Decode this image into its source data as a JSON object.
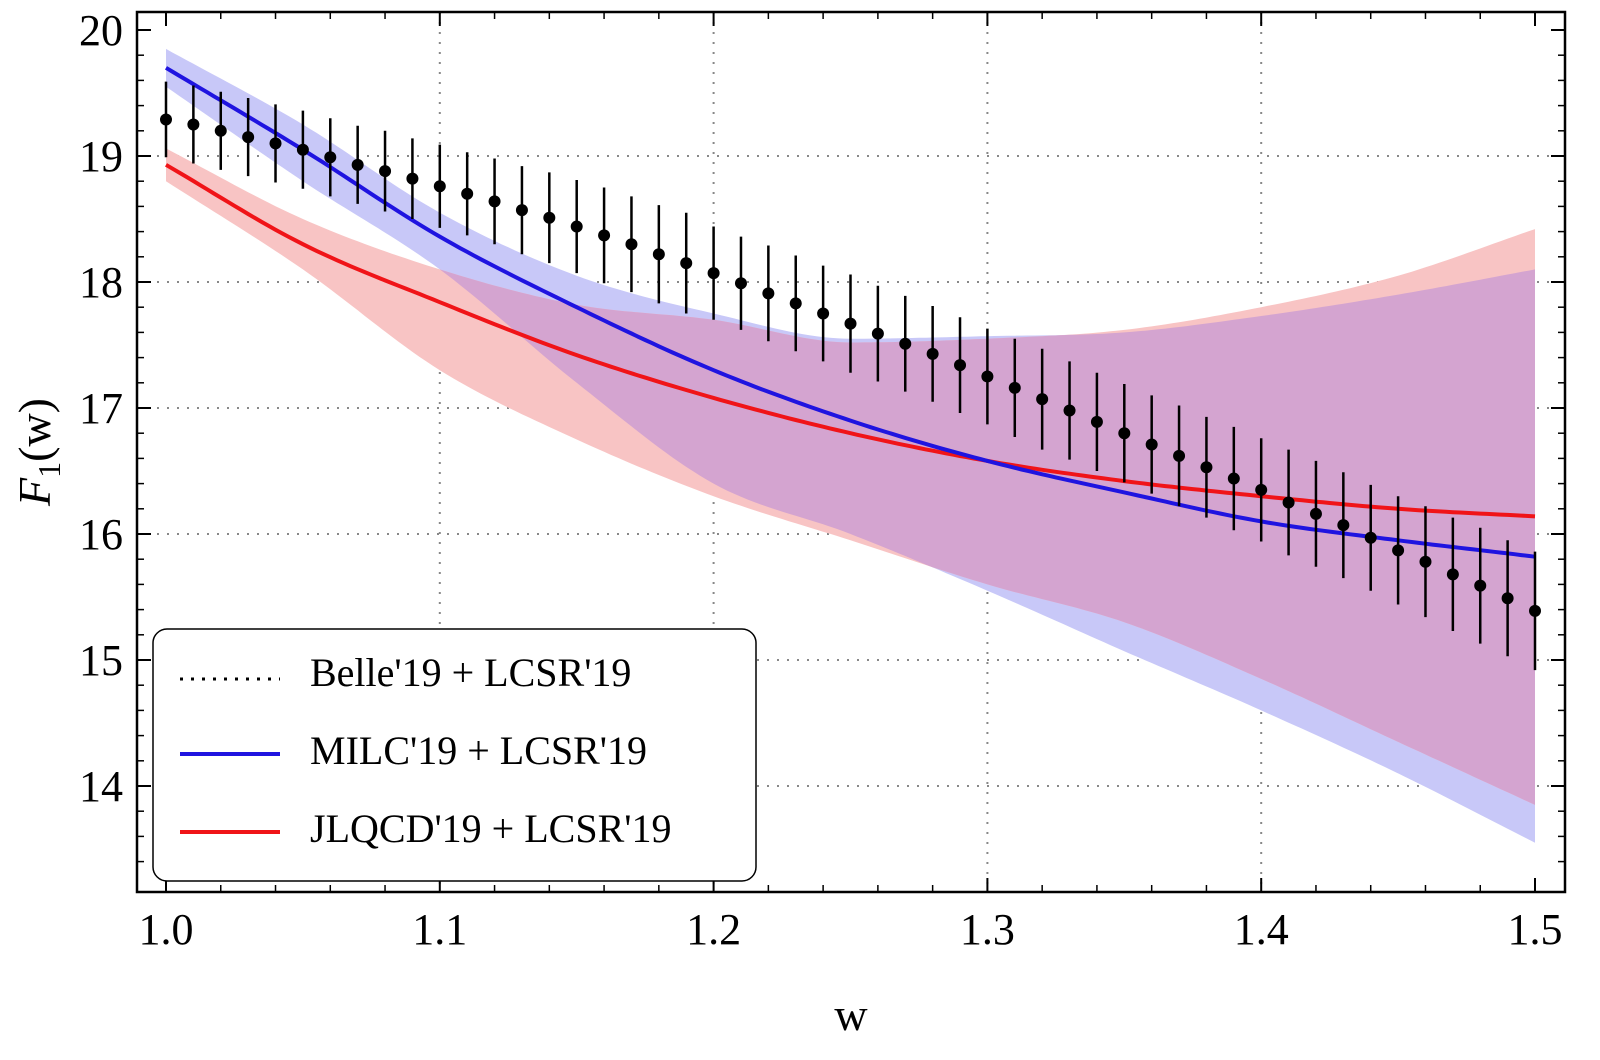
{
  "chart_data": {
    "type": "line",
    "xlabel": "w",
    "ylabel_main": "F",
    "ylabel_sub": "1",
    "ylabel_suffix": "(w)",
    "xlim": [
      0.99,
      1.505
    ],
    "ylim": [
      13.3,
      20.1
    ],
    "x_ticks": [
      1.0,
      1.1,
      1.2,
      1.3,
      1.4,
      1.5
    ],
    "x_tick_labels": [
      "1.0",
      "1.1",
      "1.2",
      "1.3",
      "1.4",
      "1.5"
    ],
    "y_ticks": [
      14,
      15,
      16,
      17,
      18,
      19,
      20
    ],
    "y_tick_labels": [
      "14",
      "15",
      "16",
      "17",
      "18",
      "19",
      "20"
    ],
    "grid": true,
    "legend_position": "bottom-left",
    "colors": {
      "blue_line": "#1f14e0",
      "blue_band": "#c8c8f8",
      "red_line": "#f01418",
      "red_band": "#f8c4c4",
      "overlap_band": "#d4a4d0",
      "points": "#000000"
    },
    "series": [
      {
        "name": "Belle'19 + LCSR'19",
        "style": "points-with-errorbars",
        "x": [
          1.0,
          1.01,
          1.02,
          1.03,
          1.04,
          1.05,
          1.06,
          1.07,
          1.08,
          1.09,
          1.1,
          1.11,
          1.12,
          1.13,
          1.14,
          1.15,
          1.16,
          1.17,
          1.18,
          1.19,
          1.2,
          1.21,
          1.22,
          1.23,
          1.24,
          1.25,
          1.26,
          1.27,
          1.28,
          1.29,
          1.3,
          1.31,
          1.32,
          1.33,
          1.34,
          1.35,
          1.36,
          1.37,
          1.38,
          1.39,
          1.4,
          1.41,
          1.42,
          1.43,
          1.44,
          1.45,
          1.46,
          1.47,
          1.48,
          1.49,
          1.5
        ],
        "y": [
          19.29,
          19.25,
          19.2,
          19.15,
          19.1,
          19.05,
          18.99,
          18.93,
          18.88,
          18.82,
          18.76,
          18.7,
          18.64,
          18.57,
          18.51,
          18.44,
          18.37,
          18.3,
          18.22,
          18.15,
          18.07,
          17.99,
          17.91,
          17.83,
          17.75,
          17.67,
          17.59,
          17.51,
          17.43,
          17.34,
          17.25,
          17.16,
          17.07,
          16.98,
          16.89,
          16.8,
          16.71,
          16.62,
          16.53,
          16.44,
          16.35,
          16.25,
          16.16,
          16.07,
          15.97,
          15.87,
          15.78,
          15.68,
          15.59,
          15.49,
          15.39
        ],
        "err": [
          0.3,
          0.31,
          0.31,
          0.31,
          0.31,
          0.31,
          0.31,
          0.31,
          0.32,
          0.32,
          0.33,
          0.33,
          0.34,
          0.35,
          0.36,
          0.37,
          0.38,
          0.38,
          0.39,
          0.4,
          0.37,
          0.37,
          0.38,
          0.38,
          0.38,
          0.39,
          0.38,
          0.38,
          0.38,
          0.38,
          0.38,
          0.39,
          0.4,
          0.39,
          0.39,
          0.39,
          0.39,
          0.4,
          0.4,
          0.41,
          0.41,
          0.42,
          0.42,
          0.42,
          0.42,
          0.43,
          0.44,
          0.45,
          0.46,
          0.46,
          0.47
        ]
      },
      {
        "name": "MILC'19 + LCSR'19",
        "style": "line-with-band",
        "x": [
          1.0,
          1.05,
          1.1,
          1.15,
          1.2,
          1.25,
          1.3,
          1.35,
          1.4,
          1.45,
          1.5
        ],
        "y": [
          19.7,
          19.05,
          18.36,
          17.8,
          17.3,
          16.9,
          16.58,
          16.33,
          16.1,
          15.95,
          15.82
        ],
        "y_low": [
          19.55,
          18.8,
          18.1,
          17.2,
          16.4,
          16.0,
          15.55,
          15.07,
          14.6,
          14.1,
          13.55
        ],
        "y_high": [
          19.85,
          19.25,
          18.55,
          18.05,
          17.75,
          17.55,
          17.57,
          17.6,
          17.73,
          17.9,
          18.1
        ]
      },
      {
        "name": "JLQCD'19 + LCSR'19",
        "style": "line-with-band",
        "x": [
          1.0,
          1.05,
          1.1,
          1.15,
          1.2,
          1.25,
          1.3,
          1.35,
          1.4,
          1.45,
          1.5
        ],
        "y": [
          18.93,
          18.3,
          17.84,
          17.42,
          17.08,
          16.8,
          16.58,
          16.42,
          16.3,
          16.2,
          16.14
        ],
        "y_low": [
          18.8,
          18.1,
          17.3,
          16.75,
          16.3,
          15.95,
          15.6,
          15.3,
          14.85,
          14.35,
          13.85
        ],
        "y_high": [
          19.06,
          18.5,
          18.1,
          17.82,
          17.7,
          17.52,
          17.55,
          17.62,
          17.8,
          18.05,
          18.42
        ]
      }
    ]
  }
}
